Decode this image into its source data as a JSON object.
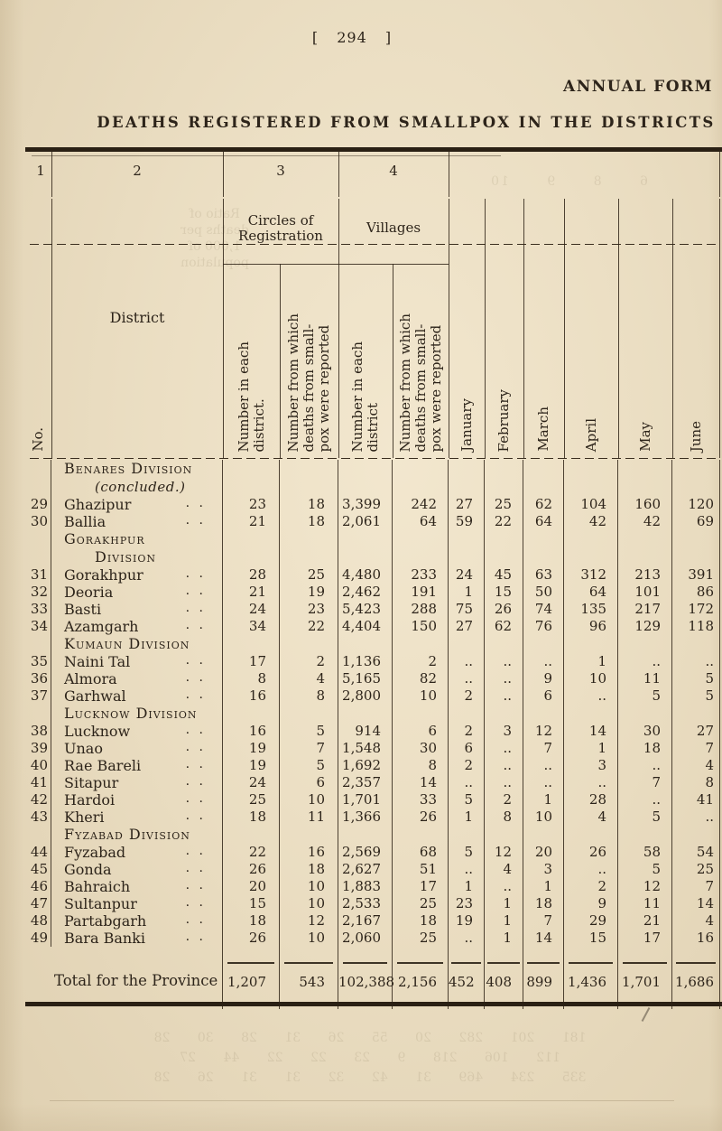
{
  "page": {
    "number": "[ 294 ]",
    "form_label": "ANNUAL FORM",
    "title": "DEATHS REGISTERED FROM SMALLPOX IN THE DISTRICTS"
  },
  "table": {
    "col_numbers": [
      "1",
      "2",
      "3",
      "4"
    ],
    "headers": {
      "no": "No.",
      "district": "District",
      "circles_group": "Circles of Registration",
      "villages_group": "Villages",
      "sub_circles_each_lines": [
        "Number in each",
        "district."
      ],
      "sub_circles_reported_lines": [
        "Number from which",
        "deaths from small-",
        "pox were reported"
      ],
      "sub_villages_each_lines": [
        "Number in  each",
        "district"
      ],
      "sub_villages_reported_lines": [
        "Number from which",
        "deaths from small-",
        "pox were reported"
      ],
      "months": [
        "January",
        "February",
        "March",
        "April",
        "May",
        "June"
      ]
    },
    "ditto": ". .",
    "rows": [
      {
        "type": "division",
        "lines": [
          "Benares Division",
          "(concluded.)"
        ],
        "tall": true
      },
      {
        "type": "data",
        "no": "29",
        "district": "Ghazipur",
        "values": [
          "23",
          "18",
          "3,399",
          "242",
          "27",
          "25",
          "62",
          "104",
          "160",
          "120"
        ]
      },
      {
        "type": "data",
        "no": "30",
        "district": "Ballia",
        "values": [
          "21",
          "18",
          "2,061",
          "64",
          "59",
          "22",
          "64",
          "42",
          "42",
          "69"
        ]
      },
      {
        "type": "division",
        "lines": [
          "Gorakhpur",
          "Division"
        ],
        "tall": true
      },
      {
        "type": "data",
        "no": "31",
        "district": "Gorakhpur",
        "values": [
          "28",
          "25",
          "4,480",
          "233",
          "24",
          "45",
          "63",
          "312",
          "213",
          "391"
        ]
      },
      {
        "type": "data",
        "no": "32",
        "district": "Deoria",
        "values": [
          "21",
          "19",
          "2,462",
          "191",
          "1",
          "15",
          "50",
          "64",
          "101",
          "86"
        ]
      },
      {
        "type": "data",
        "no": "33",
        "district": "Basti",
        "values": [
          "24",
          "23",
          "5,423",
          "288",
          "75",
          "26",
          "74",
          "135",
          "217",
          "172"
        ]
      },
      {
        "type": "data",
        "no": "34",
        "district": "Azamgarh",
        "values": [
          "34",
          "22",
          "4,404",
          "150",
          "27",
          "62",
          "76",
          "96",
          "129",
          "118"
        ]
      },
      {
        "type": "division",
        "lines": [
          "Kumaun Division"
        ]
      },
      {
        "type": "data",
        "no": "35",
        "district": "Naini Tal",
        "values": [
          "17",
          "2",
          "1,136",
          "2",
          "..",
          "..",
          "..",
          "1",
          "..",
          ".."
        ]
      },
      {
        "type": "data",
        "no": "36",
        "district": "Almora",
        "values": [
          "8",
          "4",
          "5,165",
          "82",
          "..",
          "..",
          "9",
          "10",
          "11",
          "5"
        ]
      },
      {
        "type": "data",
        "no": "37",
        "district": "Garhwal",
        "values": [
          "16",
          "8",
          "2,800",
          "10",
          "2",
          "..",
          "6",
          "..",
          "5",
          "5"
        ]
      },
      {
        "type": "division",
        "lines": [
          "Lucknow Division"
        ]
      },
      {
        "type": "data",
        "no": "38",
        "district": "Lucknow",
        "values": [
          "16",
          "5",
          "914",
          "6",
          "2",
          "3",
          "12",
          "14",
          "30",
          "27"
        ]
      },
      {
        "type": "data",
        "no": "39",
        "district": "Unao",
        "values": [
          "19",
          "7",
          "1,548",
          "30",
          "6",
          "..",
          "7",
          "1",
          "18",
          "7"
        ]
      },
      {
        "type": "data",
        "no": "40",
        "district": "Rae Bareli",
        "values": [
          "19",
          "5",
          "1,692",
          "8",
          "2",
          "..",
          "..",
          "3",
          "..",
          "4"
        ]
      },
      {
        "type": "data",
        "no": "41",
        "district": "Sitapur",
        "values": [
          "24",
          "6",
          "2,357",
          "14",
          "..",
          "..",
          "..",
          "..",
          "7",
          "8"
        ]
      },
      {
        "type": "data",
        "no": "42",
        "district": "Hardoi",
        "values": [
          "25",
          "10",
          "1,701",
          "33",
          "5",
          "2",
          "1",
          "28",
          "..",
          "41"
        ]
      },
      {
        "type": "data",
        "no": "43",
        "district": "Kheri",
        "values": [
          "18",
          "11",
          "1,366",
          "26",
          "1",
          "8",
          "10",
          "4",
          "5",
          ".."
        ]
      },
      {
        "type": "division",
        "lines": [
          "Fyzabad Division"
        ]
      },
      {
        "type": "data",
        "no": "44",
        "district": "Fyzabad",
        "values": [
          "22",
          "16",
          "2,569",
          "68",
          "5",
          "12",
          "20",
          "26",
          "58",
          "54"
        ]
      },
      {
        "type": "data",
        "no": "45",
        "district": "Gonda",
        "values": [
          "26",
          "18",
          "2,627",
          "51",
          "..",
          "4",
          "3",
          "..",
          "5",
          "25"
        ]
      },
      {
        "type": "data",
        "no": "46",
        "district": "Bahraich",
        "values": [
          "20",
          "10",
          "1,883",
          "17",
          "1",
          "..",
          "1",
          "2",
          "12",
          "7"
        ]
      },
      {
        "type": "data",
        "no": "47",
        "district": "Sultanpur",
        "values": [
          "15",
          "10",
          "2,533",
          "25",
          "23",
          "1",
          "18",
          "9",
          "11",
          "14"
        ]
      },
      {
        "type": "data",
        "no": "48",
        "district": "Partabgarh",
        "values": [
          "18",
          "12",
          "2,167",
          "18",
          "19",
          "1",
          "7",
          "29",
          "21",
          "4"
        ]
      },
      {
        "type": "data",
        "no": "49",
        "district": "Bara Banki",
        "values": [
          "26",
          "10",
          "2,060",
          "25",
          "..",
          "1",
          "14",
          "15",
          "17",
          "16"
        ]
      }
    ],
    "total": {
      "label": "Total for the Province",
      "values": [
        "1,207",
        "543",
        "102,388",
        "2,156",
        "452",
        "408",
        "899",
        "1,436",
        "1,701",
        "1,686"
      ]
    }
  },
  "artifacts": {
    "bleed_header_lines": [
      "Ratio of",
      "deaths per",
      "1,000 of",
      "population"
    ],
    "bleed_number_row": "6   8   9   10",
    "bleed_bottom_rows": [
      "181   201   282   20   55   26   31   28   30   28",
      "112   106   218   9   23   22   22   44   27",
      "335   234   469   31   42   32   31   31   26   28"
    ]
  }
}
